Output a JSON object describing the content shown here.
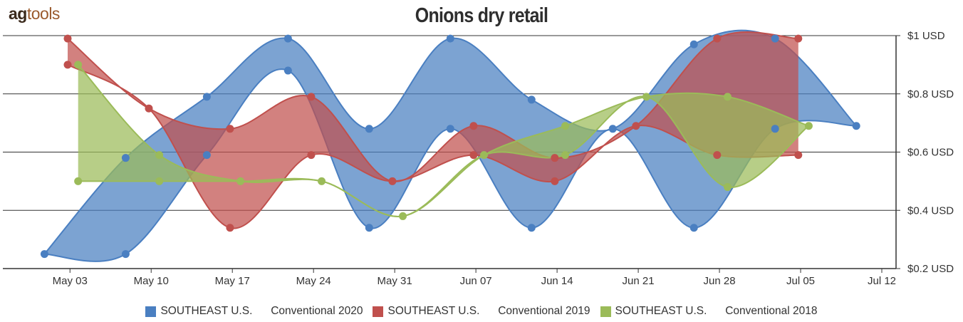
{
  "logo": {
    "part1": "ag",
    "part2": "tools"
  },
  "chart_data": {
    "type": "area",
    "title": "Onions dry retail",
    "xlabel": "",
    "ylabel": "",
    "ylim": [
      0.2,
      1.0
    ],
    "yticks": [
      {
        "value": 0.2,
        "label": "$0.2 USD"
      },
      {
        "value": 0.4,
        "label": "$0.4 USD"
      },
      {
        "value": 0.6,
        "label": "$0.6 USD"
      },
      {
        "value": 0.8,
        "label": "$0.8 USD"
      },
      {
        "value": 1.0,
        "label": "$1 USD"
      }
    ],
    "xticks": [
      {
        "day": 3,
        "label": "May 03"
      },
      {
        "day": 10,
        "label": "May 10"
      },
      {
        "day": 17,
        "label": "May 17"
      },
      {
        "day": 24,
        "label": "May 24"
      },
      {
        "day": 31,
        "label": "May 31"
      },
      {
        "day": 38,
        "label": "Jun 07"
      },
      {
        "day": 45,
        "label": "Jun 14"
      },
      {
        "day": 52,
        "label": "Jun 21"
      },
      {
        "day": 59,
        "label": "Jun 28"
      },
      {
        "day": 66,
        "label": "Jul 05"
      },
      {
        "day": 73,
        "label": "Jul 12"
      }
    ],
    "grid": true,
    "legend_position": "bottom",
    "series": [
      {
        "name": "SOUTHEAST U.S.      Conventional 2020",
        "color": "#4a7fc1",
        "points": [
          {
            "x": 0.8,
            "low": 0.25,
            "high": 0.25
          },
          {
            "x": 7.8,
            "low": 0.25,
            "high": 0.58
          },
          {
            "x": 14.8,
            "low": 0.59,
            "high": 0.79
          },
          {
            "x": 21.8,
            "low": 0.88,
            "high": 0.99
          },
          {
            "x": 28.8,
            "low": 0.34,
            "high": 0.68
          },
          {
            "x": 35.8,
            "low": 0.68,
            "high": 0.99
          },
          {
            "x": 42.8,
            "low": 0.34,
            "high": 0.78
          },
          {
            "x": 49.8,
            "low": 0.68,
            "high": 0.68
          },
          {
            "x": 56.8,
            "low": 0.34,
            "high": 0.97
          },
          {
            "x": 63.8,
            "low": 0.68,
            "high": 0.99
          },
          {
            "x": 70.8,
            "low": 0.69,
            "high": 0.69
          }
        ]
      },
      {
        "name": "SOUTHEAST U.S.      Conventional 2019",
        "color": "#c0504d",
        "points": [
          {
            "x": 2.8,
            "low": 0.9,
            "high": 0.99
          },
          {
            "x": 9.8,
            "low": 0.75,
            "high": 0.75
          },
          {
            "x": 16.8,
            "low": 0.34,
            "high": 0.68
          },
          {
            "x": 23.8,
            "low": 0.59,
            "high": 0.79
          },
          {
            "x": 30.8,
            "low": 0.5,
            "high": 0.5
          },
          {
            "x": 37.8,
            "low": 0.59,
            "high": 0.69
          },
          {
            "x": 44.8,
            "low": 0.5,
            "high": 0.58
          },
          {
            "x": 51.8,
            "low": 0.69,
            "high": 0.69
          },
          {
            "x": 58.8,
            "low": 0.59,
            "high": 0.99
          },
          {
            "x": 65.8,
            "low": 0.59,
            "high": 0.99
          }
        ]
      },
      {
        "name": "SOUTHEAST U.S.      Conventional 2018",
        "color": "#9bbb59",
        "points": [
          {
            "x": 3.7,
            "low": 0.5,
            "high": 0.9
          },
          {
            "x": 10.7,
            "low": 0.5,
            "high": 0.59
          },
          {
            "x": 17.7,
            "low": 0.5,
            "high": 0.5
          },
          {
            "x": 24.7,
            "low": 0.5,
            "high": 0.5
          },
          {
            "x": 31.7,
            "low": 0.38,
            "high": 0.38
          },
          {
            "x": 38.7,
            "low": 0.59,
            "high": 0.59
          },
          {
            "x": 45.7,
            "low": 0.59,
            "high": 0.69
          },
          {
            "x": 52.7,
            "low": 0.79,
            "high": 0.79
          },
          {
            "x": 59.7,
            "low": 0.48,
            "high": 0.79
          },
          {
            "x": 66.7,
            "low": 0.69,
            "high": 0.69
          }
        ]
      }
    ]
  }
}
